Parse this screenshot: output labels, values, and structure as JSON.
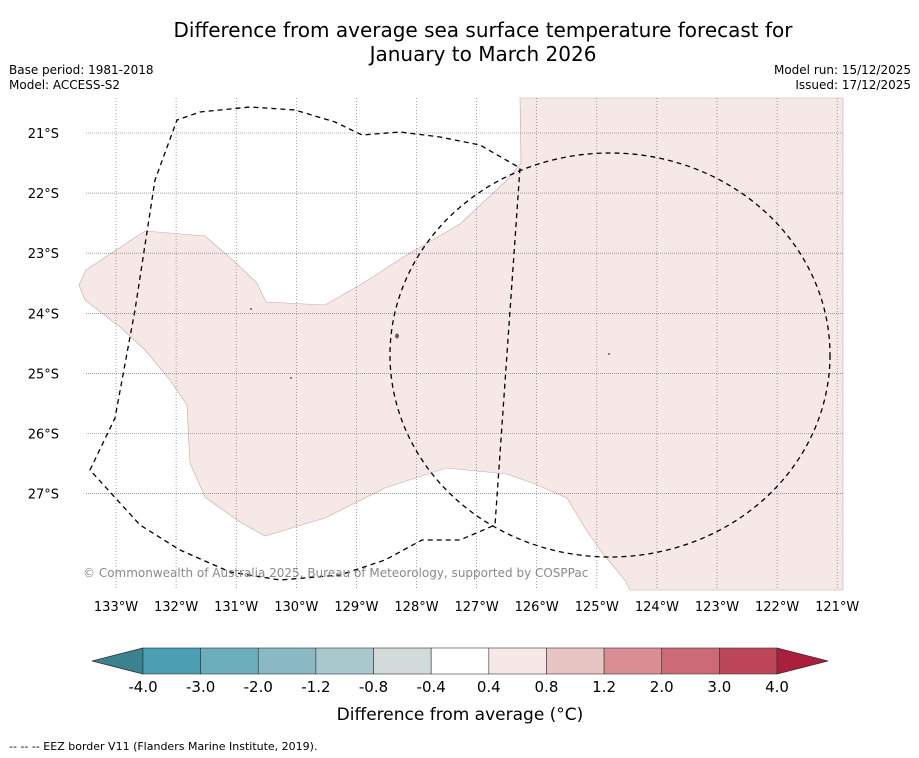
{
  "title_line1": "Difference from average sea surface temperature forecast for",
  "title_line2": "January to March 2026",
  "base_period": "Base period: 1981-2018",
  "model": "Model: ACCESS-S2",
  "model_run": "Model run: 15/12/2025",
  "issued": "Issued: 17/12/2025",
  "copyright": "© Commonwealth of Australia 2025, Bureau of Meteorology, supported by COSPPac",
  "footnote": "--  --  -- EEZ border V11 (Flanders Marine Institute, 2019).",
  "lat_labels": [
    "21°S",
    "22°S",
    "23°S",
    "24°S",
    "25°S",
    "26°S",
    "27°S"
  ],
  "lon_labels": [
    "133°W",
    "132°W",
    "131°W",
    "130°W",
    "129°W",
    "128°W",
    "127°W",
    "126°W",
    "125°W",
    "124°W",
    "123°W",
    "122°W",
    "121°W"
  ],
  "colorbar": {
    "title": "Difference from average (°C)",
    "tick_labels": [
      "-4.0",
      "-3.0",
      "-2.0",
      "-1.2",
      "-0.8",
      "-0.4",
      "0.4",
      "0.8",
      "1.2",
      "2.0",
      "3.0",
      "4.0"
    ],
    "colors": [
      "#4aa0b2",
      "#6badbb",
      "#8ab8c3",
      "#a9c8cd",
      "#d3dada",
      "#ffffff",
      "#f5e8e7",
      "#e8c4c2",
      "#d98e94",
      "#cc6a76",
      "#be4659"
    ],
    "extend_low_color": "#3a8290",
    "extend_high_color": "#ab1e3c"
  },
  "map": {
    "anomaly_fill_color": "#f5e8e7",
    "shaded_category": "0.4 to 0.8"
  }
}
